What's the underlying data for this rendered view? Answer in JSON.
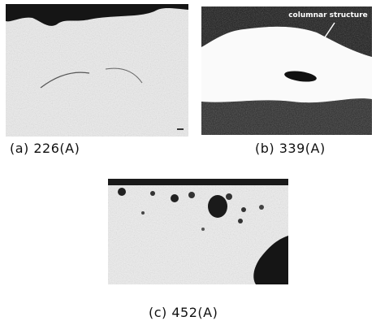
{
  "figure": {
    "panels": [
      {
        "caption": "(a) 226(A)"
      },
      {
        "caption": "(b) 339(A)",
        "annotation": "columnar structure"
      },
      {
        "caption": "(c) 452(A)"
      }
    ]
  }
}
